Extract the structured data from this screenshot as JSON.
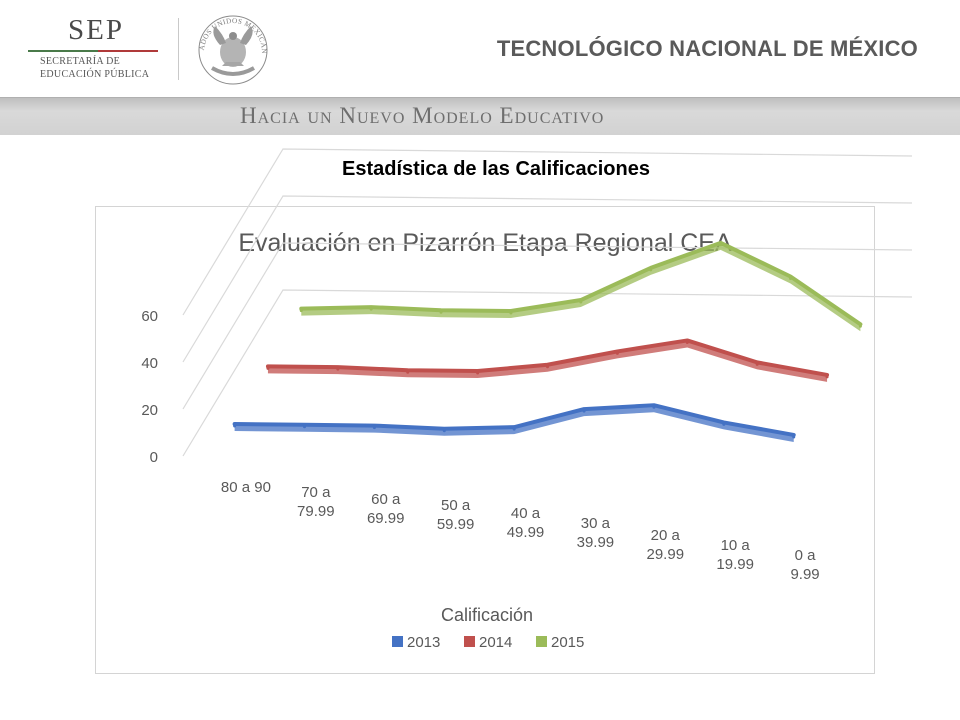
{
  "header": {
    "sep_letters": "SEP",
    "sep_line1": "SECRETARÍA DE",
    "sep_line2": "EDUCACIÓN PÚBLICA",
    "seal_text": "ESTADOS UNIDOS MEXICANOS",
    "institution": "TECNOLÓGICO NACIONAL DE MÉXICO"
  },
  "banner": {
    "text": "Hacia un Nuevo Modelo Educativo"
  },
  "slide": {
    "title": "Estadística de las Calificaciones"
  },
  "colors": {
    "2013": "#4472c4",
    "2014": "#c0504d",
    "2015": "#9bbb59"
  },
  "chart_data": {
    "type": "line",
    "style": "3d-line",
    "title": "Evaluación en Pizarrón Etapa Regional CEA",
    "xlabel": "Calificación",
    "ylabel": "",
    "ylim": [
      0,
      60
    ],
    "yticks": [
      "0",
      "20",
      "40",
      "60"
    ],
    "grid": true,
    "legend_position": "bottom",
    "categories": [
      [
        "80 a 90"
      ],
      [
        "70 a",
        "79.99"
      ],
      [
        "60 a",
        "69.99"
      ],
      [
        "50 a",
        "59.99"
      ],
      [
        "40 a",
        "49.99"
      ],
      [
        "30 a",
        "39.99"
      ],
      [
        "20 a",
        "29.99"
      ],
      [
        "10 a",
        "19.99"
      ],
      [
        "0 a",
        "9.99"
      ]
    ],
    "series": [
      {
        "name": "2013",
        "values": [
          2,
          2,
          2,
          1,
          2,
          10,
          12,
          5,
          0
        ]
      },
      {
        "name": "2014",
        "values": [
          3,
          3,
          2,
          2,
          5,
          11,
          16,
          7,
          2
        ]
      },
      {
        "name": "2015",
        "values": [
          4,
          5,
          4,
          4,
          9,
          23,
          34,
          20,
          0
        ]
      }
    ]
  }
}
